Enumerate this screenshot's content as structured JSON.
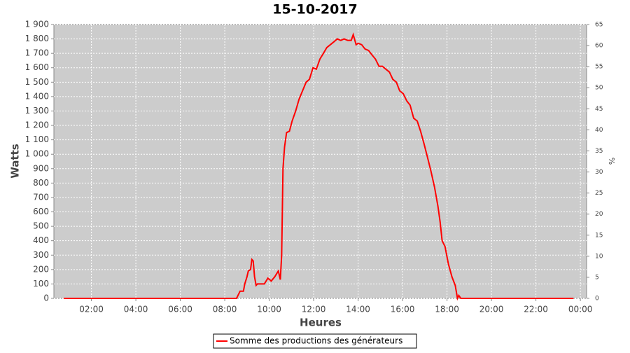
{
  "chart_data": {
    "type": "line",
    "title": "15-10-2017",
    "xlabel": "Heures",
    "ylabel": "Watts",
    "y2label": "%",
    "x": [
      0.75,
      3,
      6,
      8.0,
      8.53,
      8.69,
      8.84,
      8.9,
      9.0,
      9.06,
      9.16,
      9.22,
      9.28,
      9.34,
      9.41,
      9.47,
      9.78,
      9.94,
      10.09,
      10.25,
      10.41,
      10.5,
      10.56,
      10.59,
      10.62,
      10.69,
      10.78,
      10.91,
      11.03,
      11.19,
      11.34,
      11.5,
      11.66,
      11.81,
      11.97,
      12.12,
      12.28,
      12.44,
      12.59,
      12.75,
      12.91,
      13.06,
      13.22,
      13.37,
      13.53,
      13.69,
      13.78,
      13.91,
      14.0,
      14.16,
      14.31,
      14.47,
      14.62,
      14.78,
      14.94,
      15.09,
      15.25,
      15.41,
      15.56,
      15.72,
      15.87,
      16.03,
      16.19,
      16.34,
      16.5,
      16.66,
      16.81,
      16.97,
      17.12,
      17.28,
      17.44,
      17.59,
      17.69,
      17.78,
      17.91,
      18.06,
      18.22,
      18.37,
      18.47,
      18.53,
      18.62,
      19,
      21,
      23.69
    ],
    "series": [
      {
        "name": "Somme des productions des  générateurs",
        "color": "#ff0000",
        "values": [
          0,
          0,
          0,
          0,
          0,
          50,
          50,
          100,
          150,
          190,
          200,
          270,
          260,
          150,
          90,
          100,
          100,
          140,
          120,
          150,
          190,
          130,
          300,
          600,
          900,
          1050,
          1150,
          1160,
          1230,
          1300,
          1380,
          1440,
          1500,
          1520,
          1600,
          1590,
          1660,
          1700,
          1740,
          1760,
          1780,
          1800,
          1790,
          1800,
          1790,
          1790,
          1830,
          1760,
          1770,
          1760,
          1730,
          1720,
          1690,
          1660,
          1610,
          1610,
          1590,
          1570,
          1520,
          1500,
          1440,
          1420,
          1370,
          1340,
          1250,
          1230,
          1160,
          1070,
          980,
          880,
          770,
          640,
          530,
          400,
          360,
          240,
          150,
          90,
          0,
          20,
          0,
          0,
          0,
          0
        ]
      }
    ],
    "xlim": [
      0.3125,
      24.28
    ],
    "xticks": [
      {
        "value": 2,
        "label": "02:00"
      },
      {
        "value": 4,
        "label": "04:00"
      },
      {
        "value": 6,
        "label": "06:00"
      },
      {
        "value": 8,
        "label": "08:00"
      },
      {
        "value": 10,
        "label": "10:00"
      },
      {
        "value": 12,
        "label": "12:00"
      },
      {
        "value": 14,
        "label": "14:00"
      },
      {
        "value": 16,
        "label": "16:00"
      },
      {
        "value": 18,
        "label": "18:00"
      },
      {
        "value": 20,
        "label": "20:00"
      },
      {
        "value": 22,
        "label": "22:00"
      },
      {
        "value": 24,
        "label": "00:00"
      }
    ],
    "ylim": [
      0,
      1900
    ],
    "yticks": [
      0,
      100,
      200,
      300,
      400,
      500,
      600,
      700,
      800,
      900,
      {
        "value": 1000,
        "label": "1 000"
      },
      {
        "value": 1100,
        "label": "1 100"
      },
      {
        "value": 1200,
        "label": "1 200"
      },
      {
        "value": 1300,
        "label": "1 300"
      },
      {
        "value": 1400,
        "label": "1 400"
      },
      {
        "value": 1500,
        "label": "1 500"
      },
      {
        "value": 1600,
        "label": "1 600"
      },
      {
        "value": 1700,
        "label": "1 700"
      },
      {
        "value": 1800,
        "label": "1 800"
      },
      {
        "value": 1900,
        "label": "1 900"
      }
    ],
    "y2lim": [
      0,
      65
    ],
    "y2ticks": [
      0,
      5,
      10,
      15,
      20,
      25,
      30,
      35,
      40,
      45,
      50,
      55,
      60,
      65
    ],
    "grid": true
  }
}
